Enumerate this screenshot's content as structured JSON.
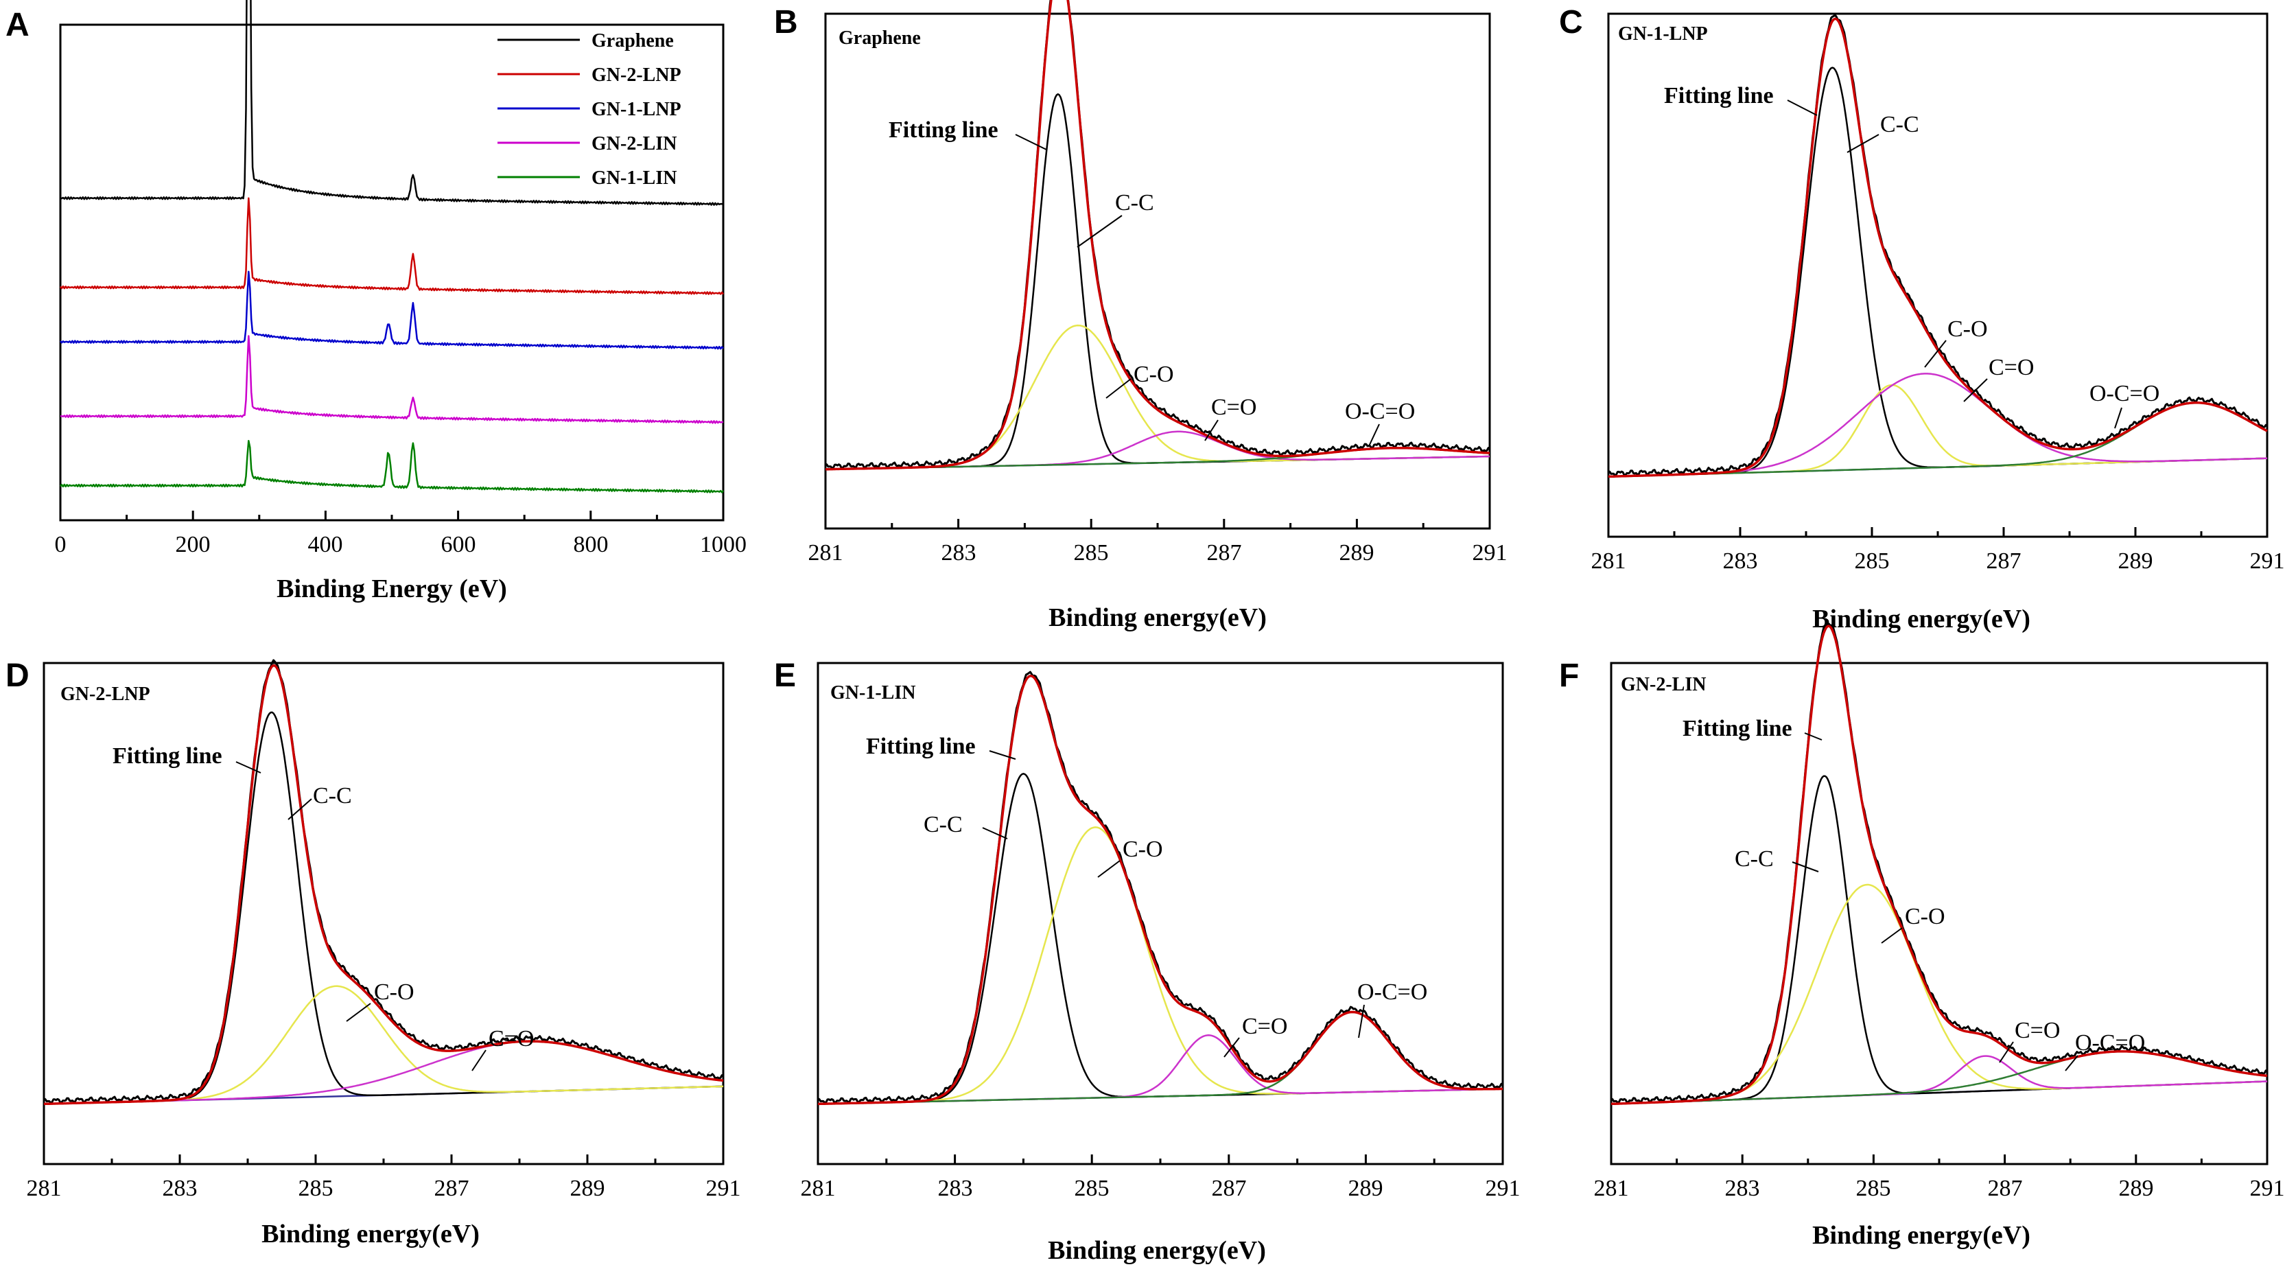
{
  "chart_data": [
    {
      "panel": "A",
      "type": "line",
      "title": "",
      "xlabel": "Binding Energy (eV)",
      "ylabel": "",
      "xlim": [
        0,
        1000
      ],
      "xticks": [
        "0",
        "200",
        "400",
        "600",
        "800",
        "1000"
      ],
      "legend": [
        "Graphene",
        "GN-2-LNP",
        "GN-1-LNP",
        "GN-2-LIN",
        "GN-1-LIN"
      ],
      "legend_position": "top-right",
      "series": [
        {
          "name": "Graphene",
          "color": "#000000",
          "offset": 0.65,
          "peaks": [
            [
              284,
              0.95
            ],
            [
              532,
              0.05
            ]
          ]
        },
        {
          "name": "GN-2-LNP",
          "color": "#cc0000",
          "offset": 0.47,
          "peaks": [
            [
              284,
              0.18
            ],
            [
              532,
              0.07
            ]
          ]
        },
        {
          "name": "GN-1-LNP",
          "color": "#0000cc",
          "offset": 0.36,
          "peaks": [
            [
              284,
              0.14
            ],
            [
              495,
              0.04
            ],
            [
              532,
              0.08
            ]
          ]
        },
        {
          "name": "GN-2-LIN",
          "color": "#cc00cc",
          "offset": 0.21,
          "peaks": [
            [
              284,
              0.16
            ],
            [
              532,
              0.04
            ]
          ]
        },
        {
          "name": "GN-1-LIN",
          "color": "#008000",
          "offset": 0.07,
          "peaks": [
            [
              284,
              0.09
            ],
            [
              495,
              0.07
            ],
            [
              532,
              0.09
            ]
          ]
        }
      ]
    },
    {
      "panel": "B",
      "type": "line",
      "title": "Graphene",
      "xlabel": "Binding energy(eV)",
      "xlim": [
        281,
        291
      ],
      "xticks": [
        "281",
        "283",
        "285",
        "287",
        "289",
        "291"
      ],
      "series": [
        {
          "name": "C-C",
          "center": 284.5,
          "height": 0.72,
          "sigma": 0.3
        },
        {
          "name": "C-O",
          "center": 284.8,
          "height": 0.27,
          "sigma": 0.65
        },
        {
          "name": "C=O",
          "center": 286.3,
          "height": 0.06,
          "sigma": 0.65
        },
        {
          "name": "O-C=O",
          "center": 289.5,
          "height": 0.02,
          "sigma": 1.0
        }
      ],
      "annotations": [
        "Fitting line",
        "C-C",
        "C-O",
        "C=O",
        "O-C=O"
      ]
    },
    {
      "panel": "C",
      "type": "line",
      "title": "GN-1-LNP",
      "xlabel": "Binding energy(eV)",
      "xlim": [
        281,
        291
      ],
      "xticks": [
        "281",
        "283",
        "285",
        "287",
        "289",
        "291"
      ],
      "series": [
        {
          "name": "C-C",
          "center": 284.4,
          "height": 0.77,
          "sigma": 0.4
        },
        {
          "name": "C-O",
          "center": 285.3,
          "height": 0.16,
          "sigma": 0.45
        },
        {
          "name": "C=O",
          "center": 285.8,
          "height": 0.18,
          "sigma": 1.0
        },
        {
          "name": "O-C=O",
          "center": 289.9,
          "height": 0.11,
          "sigma": 0.9
        }
      ],
      "annotations": [
        "Fitting line",
        "C-C",
        "C-O",
        "C=O",
        "O-C=O"
      ]
    },
    {
      "panel": "D",
      "type": "line",
      "title": "GN-2-LNP",
      "xlabel": "Binding energy(eV)",
      "xlim": [
        281,
        291
      ],
      "xticks": [
        "281",
        "283",
        "285",
        "287",
        "289",
        "291"
      ],
      "series": [
        {
          "name": "C-C",
          "center": 284.35,
          "height": 0.77,
          "sigma": 0.38
        },
        {
          "name": "C-O",
          "center": 285.3,
          "height": 0.22,
          "sigma": 0.7
        },
        {
          "name": "C=O",
          "center": 288.1,
          "height": 0.1,
          "sigma": 1.4
        }
      ],
      "annotations": [
        "Fitting line",
        "C-C",
        "C-O",
        "C=O"
      ]
    },
    {
      "panel": "E",
      "type": "line",
      "title": "GN-1-LIN",
      "xlabel": "Binding energy(eV)",
      "xlim": [
        281,
        291
      ],
      "xticks": [
        "281",
        "283",
        "285",
        "287",
        "289",
        "291"
      ],
      "series": [
        {
          "name": "C-C",
          "center": 284.0,
          "height": 0.65,
          "sigma": 0.4
        },
        {
          "name": "C-O",
          "center": 285.05,
          "height": 0.54,
          "sigma": 0.7
        },
        {
          "name": "C=O",
          "center": 286.7,
          "height": 0.12,
          "sigma": 0.4
        },
        {
          "name": "O-C=O",
          "center": 288.8,
          "height": 0.16,
          "sigma": 0.55
        }
      ],
      "annotations": [
        "Fitting line",
        "C-C",
        "C-O",
        "C=O",
        "O-C=O"
      ]
    },
    {
      "panel": "F",
      "type": "line",
      "title": "GN-2-LIN",
      "xlabel": "Binding energy(eV)",
      "xlim": [
        281,
        291
      ],
      "xticks": [
        "281",
        "283",
        "285",
        "287",
        "289",
        "291"
      ],
      "series": [
        {
          "name": "C-C",
          "center": 284.25,
          "height": 0.64,
          "sigma": 0.35
        },
        {
          "name": "C-O",
          "center": 284.9,
          "height": 0.42,
          "sigma": 0.75
        },
        {
          "name": "C=O",
          "center": 286.7,
          "height": 0.07,
          "sigma": 0.4
        },
        {
          "name": "O-C=O",
          "center": 288.7,
          "height": 0.07,
          "sigma": 1.2
        }
      ],
      "annotations": [
        "Fitting line",
        "C-C",
        "C-O",
        "C=O",
        "O-C=O"
      ]
    }
  ],
  "colors": {
    "fit": "#cc0000",
    "envelope": "#000000",
    "cc": "#000000",
    "co": "#e6e64d",
    "c_eq_o": "#cc33cc",
    "ocoo": "#2e7d32",
    "baseline": "#333399"
  }
}
